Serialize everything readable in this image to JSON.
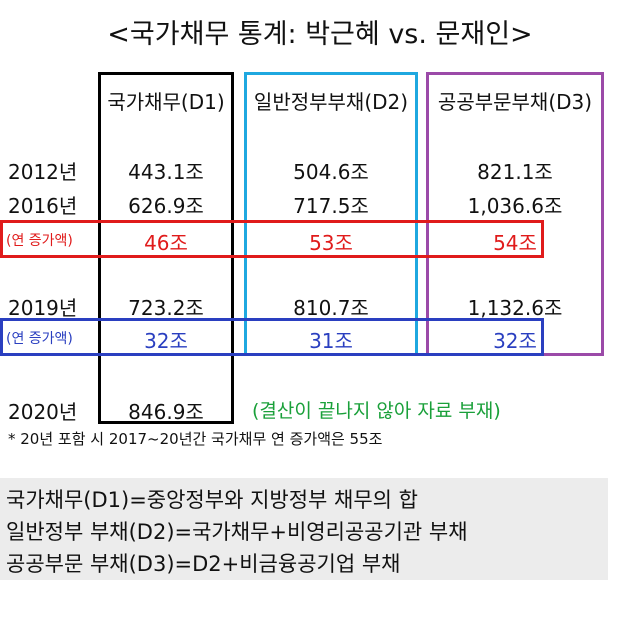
{
  "title": "<국가채무 통계: 박근혜 vs. 문재인>",
  "colors": {
    "d1_box": "#000000",
    "d2_box": "#1fa8e0",
    "d3_box": "#9b4aa8",
    "inc_red": "#e01b1b",
    "inc_blue": "#2a3fc0",
    "note_green": "#1aa03a"
  },
  "chart_data": {
    "type": "table",
    "columns": [
      "국가채무(D1)",
      "일반정부부채(D2)",
      "공공부문부채(D3)"
    ],
    "rows": [
      {
        "label": "2012년",
        "values": [
          "443.1조",
          "504.6조",
          "821.1조"
        ]
      },
      {
        "label": "2016년",
        "values": [
          "626.9조",
          "717.5조",
          "1,036.6조"
        ]
      },
      {
        "label": "(연 증가액)",
        "values": [
          "46조",
          "53조",
          "54조"
        ]
      },
      {
        "label": "2019년",
        "values": [
          "723.2조",
          "810.7조",
          "1,132.6조"
        ]
      },
      {
        "label": "(연 증가액)",
        "values": [
          "32조",
          "31조",
          "32조"
        ]
      },
      {
        "label": "2020년",
        "values": [
          "846.9조"
        ]
      }
    ],
    "note_2020": "(결산이 끝나지 않아 자료 부재)"
  },
  "footnote": "* 20년 포함 시 2017~20년간 국가채무 연 증가액은 55조",
  "definitions": [
    "국가채무(D1)=중앙정부와 지방정부 채무의 합",
    "일반정부 부채(D2)=국가채무+비영리공공기관 부채",
    "공공부문 부채(D3)=D2+비금융공기업 부채"
  ]
}
